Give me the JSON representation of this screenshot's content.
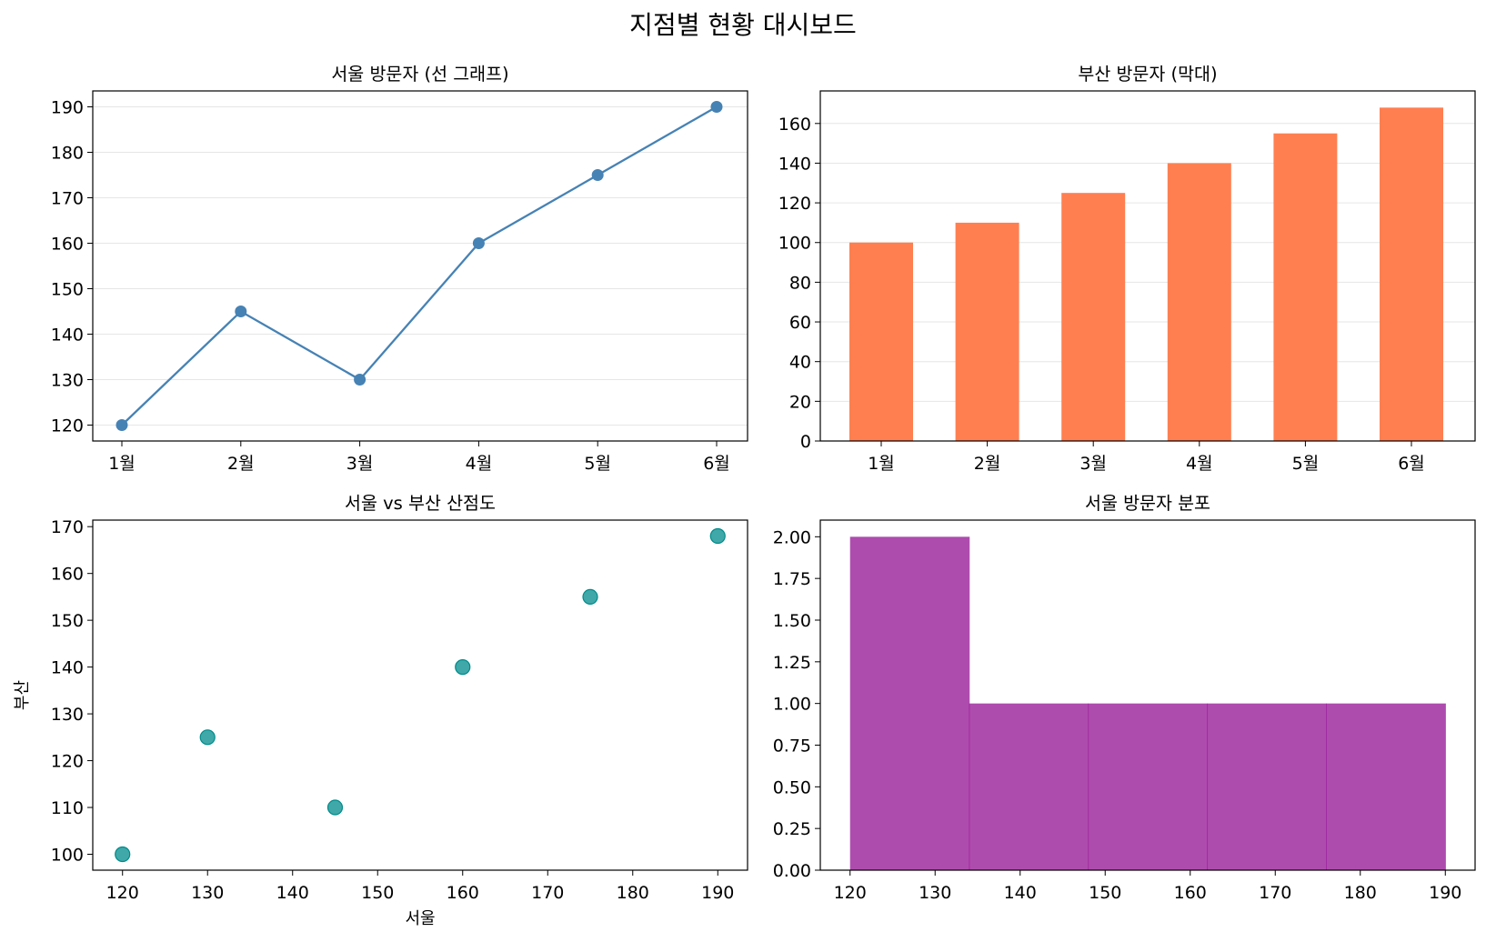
{
  "suptitle": "지점별 현황 대시보드",
  "chart_data": [
    {
      "type": "line",
      "title": "서울 방문자 (선 그래프)",
      "xlabel": "",
      "ylabel": "",
      "categories": [
        "1월",
        "2월",
        "3월",
        "4월",
        "5월",
        "6월"
      ],
      "values": [
        120,
        145,
        130,
        160,
        175,
        190
      ],
      "yticks": [
        120,
        130,
        140,
        150,
        160,
        170,
        180,
        190
      ],
      "ylim": [
        116.5,
        193.5
      ],
      "grid": "y",
      "marker": "circle",
      "color": "#4682b4"
    },
    {
      "type": "bar",
      "title": "부산 방문자 (막대)",
      "xlabel": "",
      "ylabel": "",
      "categories": [
        "1월",
        "2월",
        "3월",
        "4월",
        "5월",
        "6월"
      ],
      "values": [
        100,
        110,
        125,
        140,
        155,
        168
      ],
      "yticks": [
        0,
        20,
        40,
        60,
        80,
        100,
        120,
        140,
        160
      ],
      "ylim": [
        0,
        176.4
      ],
      "grid": "y",
      "color": "#ff7f50"
    },
    {
      "type": "scatter",
      "title": "서울 vs 부산 산점도",
      "xlabel": "서울",
      "ylabel": "부산",
      "x": [
        120,
        145,
        130,
        160,
        175,
        190
      ],
      "y": [
        100,
        110,
        125,
        140,
        155,
        168
      ],
      "xticks": [
        120,
        130,
        140,
        150,
        160,
        170,
        180,
        190
      ],
      "yticks": [
        100,
        110,
        120,
        130,
        140,
        150,
        160,
        170
      ],
      "xlim": [
        116.5,
        193.5
      ],
      "ylim": [
        96.6,
        171.4
      ],
      "grid": "none",
      "color": "#008b8b"
    },
    {
      "type": "histogram",
      "title": "서울 방문자 분포",
      "xlabel": "",
      "ylabel": "",
      "bins": [
        [
          120,
          134,
          2
        ],
        [
          134,
          148,
          1
        ],
        [
          148,
          162,
          1
        ],
        [
          162,
          176,
          1
        ],
        [
          176,
          190,
          1
        ]
      ],
      "xticks": [
        120,
        130,
        140,
        150,
        160,
        170,
        180,
        190
      ],
      "yticks": [
        0.0,
        0.25,
        0.5,
        0.75,
        1.0,
        1.25,
        1.5,
        1.75,
        2.0
      ],
      "ytick_labels": [
        "0.00",
        "0.25",
        "0.50",
        "0.75",
        "1.00",
        "1.25",
        "1.50",
        "1.75",
        "2.00"
      ],
      "xlim": [
        116.5,
        193.5
      ],
      "ylim": [
        0,
        2.1
      ],
      "grid": "none",
      "color": "#8b008b"
    }
  ]
}
